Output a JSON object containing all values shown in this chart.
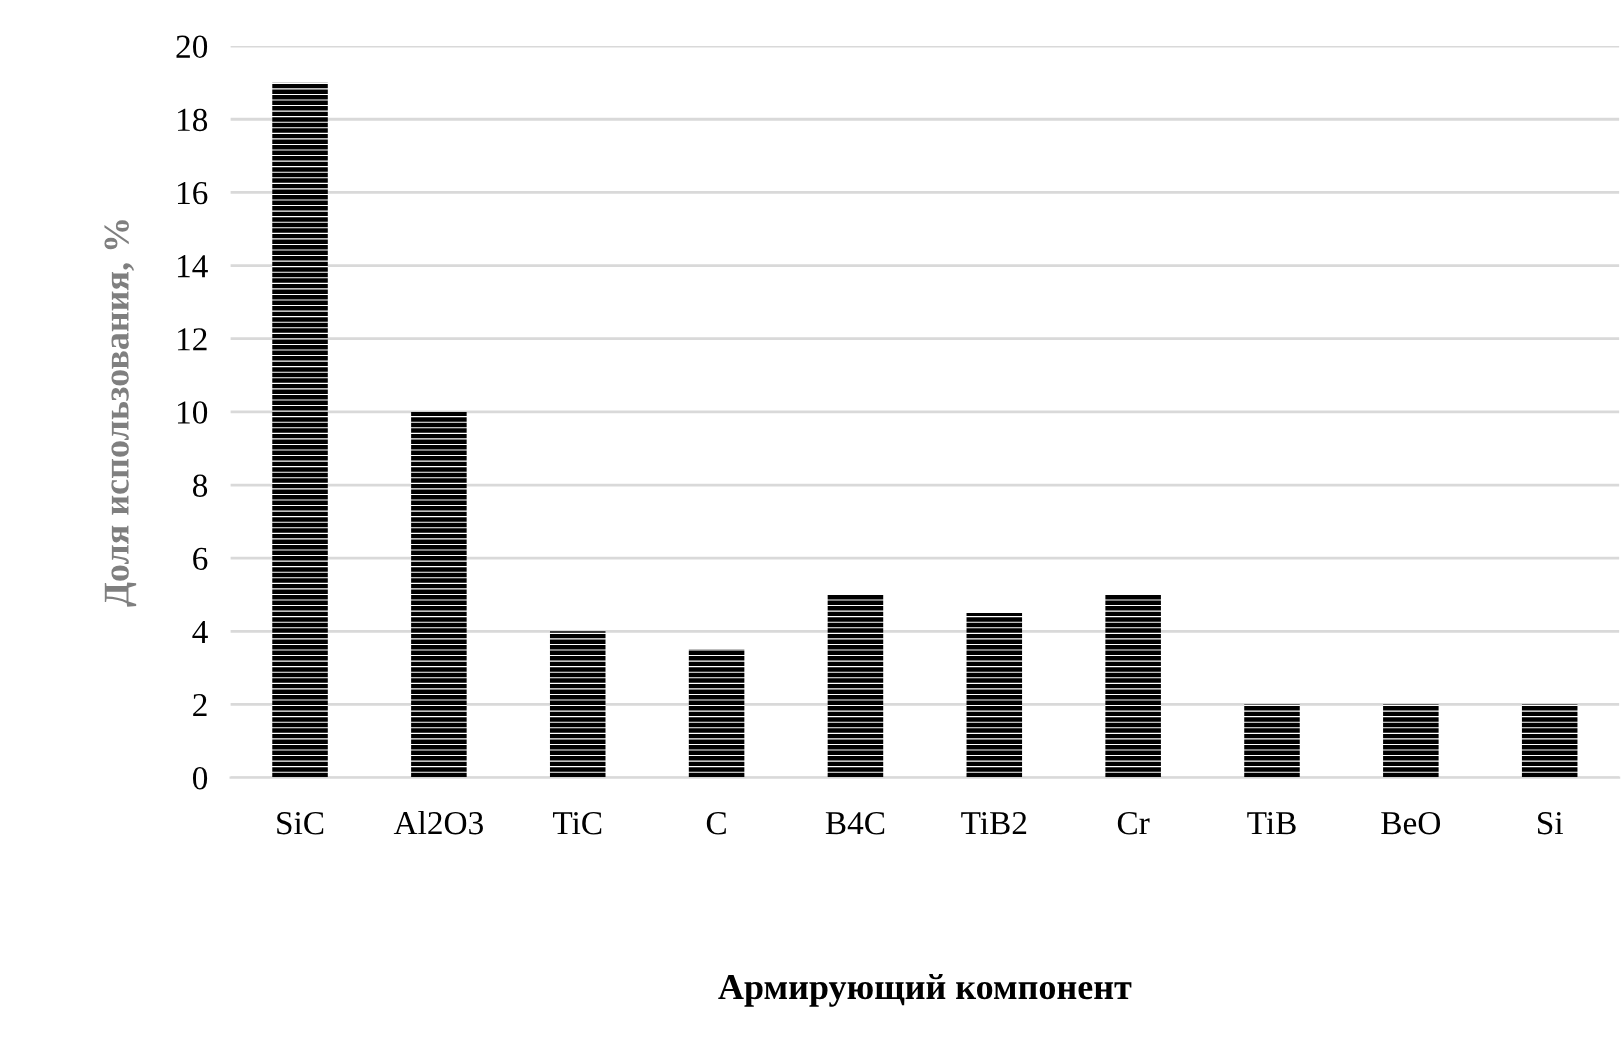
{
  "chart_data": {
    "type": "bar",
    "categories": [
      "SiC",
      "Al2O3",
      "TiC",
      "C",
      "B4C",
      "TiB2",
      "Cr",
      "TiB",
      "BeO",
      "Si"
    ],
    "values": [
      19,
      10,
      4,
      3.5,
      5,
      4.5,
      5,
      2,
      2,
      2
    ],
    "color": "#000000",
    "xlabel": "Армирующий компонент",
    "ylabel": "Доля использования, %",
    "ylim": [
      0,
      20
    ],
    "yticks": [
      0,
      2,
      4,
      6,
      8,
      10,
      12,
      14,
      16,
      18,
      20
    ],
    "grid": "y"
  }
}
